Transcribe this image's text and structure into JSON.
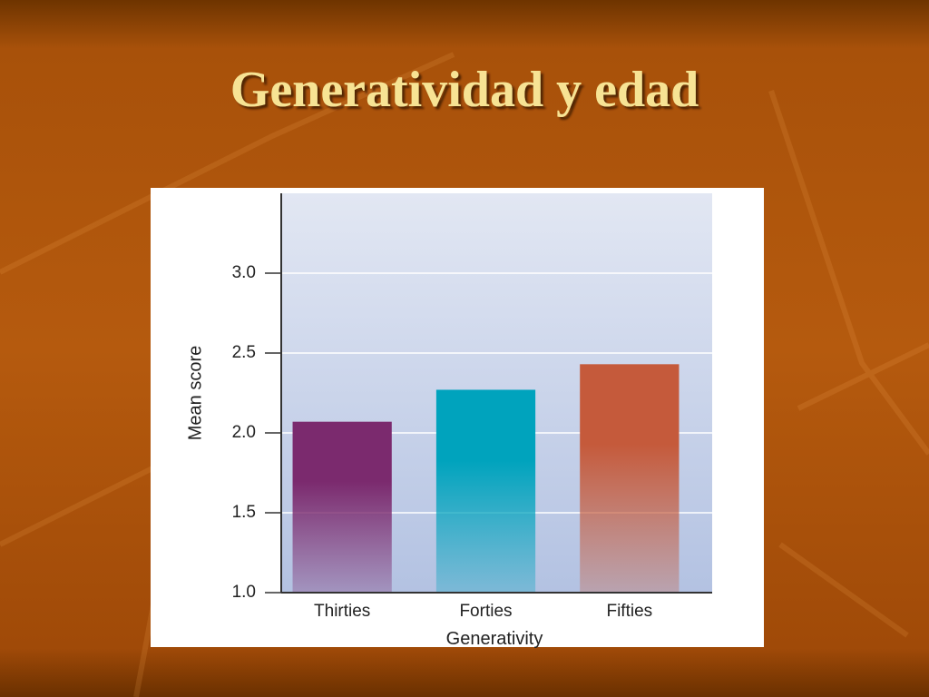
{
  "chart_data": {
    "type": "bar",
    "title": "Generatividad y edad",
    "x_label": "Generativity",
    "y_label": "Mean score",
    "categories": [
      "Thirties",
      "Forties",
      "Fifties"
    ],
    "values": [
      2.07,
      2.27,
      2.43
    ],
    "colors": [
      "#7b2a6e",
      "#00a3bd",
      "#c55a3b"
    ],
    "ylim": [
      1,
      3.5
    ],
    "yticks": [
      {
        "value": 1,
        "label": "1.0"
      },
      {
        "value": 1.5,
        "label": "1.5"
      },
      {
        "value": 2,
        "label": "2.0"
      },
      {
        "value": 2.5,
        "label": "2.5"
      },
      {
        "value": 3,
        "label": "3.0"
      }
    ],
    "grid": true
  }
}
